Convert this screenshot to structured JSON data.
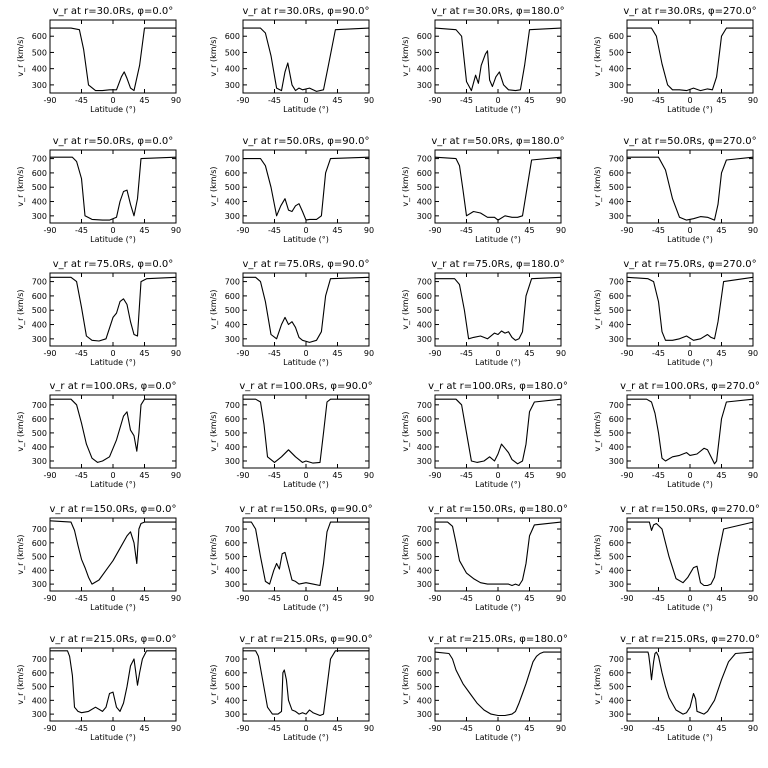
{
  "chart_data": {
    "type": "line",
    "xlabel": "Latitude (°)",
    "ylabel": "v_r (km/s)",
    "xlim": [
      -90,
      90
    ],
    "x_ticks": [
      -90,
      -45,
      0,
      45,
      90
    ],
    "rows": [
      {
        "r": "30.0",
        "ylim": [
          250,
          700
        ],
        "y_ticks": [
          300,
          400,
          500,
          600
        ]
      },
      {
        "r": "50.0",
        "ylim": [
          250,
          760
        ],
        "y_ticks": [
          300,
          400,
          500,
          600,
          700
        ]
      },
      {
        "r": "75.0",
        "ylim": [
          250,
          760
        ],
        "y_ticks": [
          300,
          400,
          500,
          600,
          700
        ]
      },
      {
        "r": "100.0",
        "ylim": [
          250,
          770
        ],
        "y_ticks": [
          300,
          400,
          500,
          600,
          700
        ]
      },
      {
        "r": "150.0",
        "ylim": [
          250,
          780
        ],
        "y_ticks": [
          300,
          400,
          500,
          600,
          700
        ]
      },
      {
        "r": "215.0",
        "ylim": [
          250,
          780
        ],
        "y_ticks": [
          300,
          400,
          500,
          600,
          700
        ]
      }
    ],
    "phis": [
      "0.0",
      "90.0",
      "180.0",
      "270.0"
    ],
    "panels": [
      {
        "title": "v_r at r=30.0Rs, φ=0.0°",
        "x": [
          -90,
          -60,
          -48,
          -42,
          -35,
          -25,
          -15,
          -5,
          5,
          12,
          16,
          20,
          25,
          30,
          38,
          45,
          90
        ],
        "y": [
          650,
          650,
          640,
          520,
          300,
          265,
          265,
          270,
          270,
          350,
          380,
          340,
          280,
          265,
          420,
          650,
          650
        ]
      },
      {
        "title": "v_r at r=30.0Rs, φ=90.0°",
        "x": [
          -90,
          -65,
          -58,
          -50,
          -42,
          -35,
          -30,
          -26,
          -20,
          -15,
          -10,
          -5,
          5,
          15,
          25,
          32,
          42,
          90
        ],
        "y": [
          650,
          650,
          620,
          480,
          280,
          265,
          380,
          435,
          300,
          265,
          280,
          270,
          280,
          260,
          270,
          420,
          640,
          650
        ]
      },
      {
        "title": "v_r at r=30.0Rs, φ=180.0°",
        "x": [
          -90,
          -60,
          -52,
          -45,
          -38,
          -32,
          -28,
          -24,
          -18,
          -15,
          -12,
          -8,
          -3,
          2,
          8,
          15,
          25,
          32,
          38,
          45,
          90
        ],
        "y": [
          650,
          640,
          600,
          320,
          265,
          360,
          310,
          420,
          490,
          510,
          330,
          290,
          350,
          380,
          300,
          270,
          265,
          270,
          420,
          640,
          650
        ]
      },
      {
        "title": "v_r at r=30.0Rs, φ=270.0°",
        "x": [
          -90,
          -55,
          -48,
          -40,
          -32,
          -25,
          -15,
          -5,
          5,
          15,
          25,
          32,
          38,
          45,
          52,
          90
        ],
        "y": [
          650,
          650,
          600,
          430,
          300,
          270,
          270,
          265,
          280,
          265,
          275,
          270,
          350,
          600,
          650,
          650
        ]
      },
      {
        "title": "v_r at r=50.0Rs, φ=0.0°",
        "x": [
          -90,
          -58,
          -52,
          -45,
          -40,
          -30,
          -15,
          -5,
          5,
          10,
          15,
          20,
          25,
          30,
          35,
          40,
          90
        ],
        "y": [
          710,
          710,
          680,
          560,
          300,
          275,
          270,
          270,
          290,
          400,
          470,
          480,
          380,
          300,
          420,
          700,
          710
        ]
      },
      {
        "title": "v_r at r=50.0Rs, φ=90.0°",
        "x": [
          -90,
          -65,
          -58,
          -50,
          -42,
          -36,
          -30,
          -25,
          -20,
          -15,
          -10,
          -5,
          0,
          5,
          15,
          22,
          28,
          35,
          90
        ],
        "y": [
          700,
          700,
          650,
          500,
          300,
          370,
          420,
          340,
          330,
          370,
          385,
          330,
          270,
          275,
          275,
          300,
          600,
          700,
          710
        ]
      },
      {
        "title": "v_r at r=50.0Rs, φ=180.0°",
        "x": [
          -90,
          -60,
          -55,
          -50,
          -45,
          -35,
          -25,
          -15,
          -5,
          0,
          10,
          20,
          28,
          35,
          40,
          48,
          90
        ],
        "y": [
          710,
          700,
          650,
          480,
          300,
          330,
          320,
          290,
          290,
          270,
          300,
          290,
          290,
          300,
          450,
          690,
          710
        ]
      },
      {
        "title": "v_r at r=50.0Rs, φ=270.0°",
        "x": [
          -90,
          -45,
          -35,
          -25,
          -15,
          -5,
          5,
          15,
          25,
          35,
          40,
          45,
          52,
          90
        ],
        "y": [
          710,
          710,
          620,
          420,
          290,
          270,
          280,
          295,
          290,
          270,
          380,
          600,
          690,
          710
        ]
      },
      {
        "title": "v_r at r=75.0Rs, φ=0.0°",
        "x": [
          -90,
          -60,
          -52,
          -45,
          -38,
          -30,
          -20,
          -10,
          0,
          5,
          10,
          15,
          20,
          25,
          30,
          35,
          40,
          48,
          90
        ],
        "y": [
          730,
          730,
          700,
          520,
          320,
          290,
          285,
          300,
          450,
          480,
          560,
          580,
          540,
          420,
          330,
          320,
          700,
          720,
          730
        ]
      },
      {
        "title": "v_r at r=75.0Rs, φ=90.0°",
        "x": [
          -90,
          -72,
          -65,
          -58,
          -50,
          -42,
          -35,
          -30,
          -25,
          -20,
          -15,
          -10,
          -5,
          5,
          15,
          22,
          28,
          35,
          90
        ],
        "y": [
          730,
          730,
          700,
          560,
          330,
          300,
          400,
          450,
          400,
          420,
          380,
          310,
          290,
          275,
          290,
          350,
          600,
          720,
          730
        ]
      },
      {
        "title": "v_r at r=75.0Rs, φ=180.0°",
        "x": [
          -90,
          -62,
          -55,
          -48,
          -42,
          -35,
          -25,
          -15,
          -5,
          0,
          5,
          10,
          15,
          20,
          25,
          30,
          35,
          40,
          48,
          90
        ],
        "y": [
          720,
          720,
          680,
          500,
          300,
          310,
          320,
          300,
          340,
          330,
          355,
          340,
          350,
          310,
          290,
          300,
          350,
          600,
          720,
          730
        ]
      },
      {
        "title": "v_r at r=75.0Rs, φ=270.0°",
        "x": [
          -90,
          -60,
          -52,
          -45,
          -40,
          -35,
          -25,
          -15,
          -5,
          5,
          15,
          25,
          30,
          35,
          40,
          48,
          90
        ],
        "y": [
          730,
          720,
          700,
          560,
          350,
          290,
          290,
          300,
          320,
          290,
          300,
          330,
          310,
          300,
          420,
          700,
          730
        ]
      },
      {
        "title": "v_r at r=100.0Rs, φ=0.0°",
        "x": [
          -90,
          -60,
          -52,
          -45,
          -38,
          -30,
          -22,
          -15,
          -5,
          5,
          15,
          20,
          25,
          30,
          34,
          37,
          40,
          45,
          90
        ],
        "y": [
          740,
          740,
          700,
          570,
          420,
          320,
          290,
          300,
          330,
          450,
          620,
          650,
          520,
          480,
          370,
          500,
          700,
          740,
          740
        ]
      },
      {
        "title": "v_r at r=100.0Rs, φ=90.0°",
        "x": [
          -90,
          -72,
          -65,
          -60,
          -55,
          -45,
          -35,
          -25,
          -15,
          -5,
          0,
          10,
          20,
          25,
          30,
          35,
          90
        ],
        "y": [
          740,
          740,
          720,
          560,
          330,
          290,
          330,
          380,
          330,
          290,
          300,
          285,
          290,
          500,
          720,
          740,
          740
        ]
      },
      {
        "title": "v_r at r=100.0Rs, φ=180.0°",
        "x": [
          -90,
          -60,
          -52,
          -45,
          -38,
          -30,
          -20,
          -12,
          -5,
          0,
          5,
          10,
          15,
          20,
          28,
          35,
          40,
          45,
          52,
          90
        ],
        "y": [
          740,
          740,
          700,
          500,
          300,
          290,
          300,
          330,
          300,
          350,
          420,
          390,
          360,
          310,
          280,
          300,
          420,
          650,
          720,
          740
        ]
      },
      {
        "title": "v_r at r=100.0Rs, φ=270.0°",
        "x": [
          -90,
          -62,
          -55,
          -50,
          -45,
          -40,
          -35,
          -25,
          -15,
          -5,
          0,
          10,
          20,
          25,
          30,
          35,
          38,
          45,
          52,
          90
        ],
        "y": [
          740,
          740,
          720,
          640,
          500,
          320,
          300,
          330,
          340,
          360,
          340,
          350,
          390,
          380,
          330,
          280,
          300,
          600,
          720,
          740
        ]
      },
      {
        "title": "v_r at r=150.0Rs, φ=0.0°",
        "x": [
          -90,
          -60,
          -55,
          -50,
          -45,
          -40,
          -35,
          -30,
          -20,
          -10,
          0,
          10,
          20,
          25,
          30,
          34,
          37,
          40,
          45,
          90
        ],
        "y": [
          760,
          750,
          690,
          580,
          480,
          420,
          350,
          300,
          330,
          400,
          470,
          560,
          650,
          680,
          600,
          450,
          700,
          740,
          750,
          750
        ]
      },
      {
        "title": "v_r at r=150.0Rs, φ=90.0°",
        "x": [
          -90,
          -78,
          -72,
          -65,
          -58,
          -52,
          -46,
          -42,
          -38,
          -34,
          -30,
          -26,
          -20,
          -15,
          -10,
          0,
          10,
          20,
          25,
          30,
          35,
          90
        ],
        "y": [
          750,
          750,
          700,
          500,
          320,
          300,
          400,
          450,
          410,
          520,
          530,
          450,
          330,
          320,
          300,
          310,
          300,
          290,
          450,
          680,
          750,
          750
        ]
      },
      {
        "title": "v_r at r=150.0Rs, φ=180.0°",
        "x": [
          -90,
          -72,
          -65,
          -60,
          -55,
          -45,
          -35,
          -25,
          -15,
          -5,
          5,
          15,
          20,
          25,
          30,
          35,
          40,
          45,
          52,
          90
        ],
        "y": [
          750,
          750,
          720,
          600,
          470,
          380,
          340,
          310,
          300,
          300,
          300,
          300,
          290,
          300,
          290,
          330,
          450,
          650,
          730,
          750
        ]
      },
      {
        "title": "v_r at r=150.0Rs, φ=270.0°",
        "x": [
          -90,
          -58,
          -55,
          -52,
          -48,
          -40,
          -30,
          -20,
          -10,
          -3,
          5,
          10,
          15,
          20,
          25,
          30,
          35,
          40,
          48,
          90
        ],
        "y": [
          750,
          750,
          690,
          730,
          740,
          700,
          500,
          340,
          310,
          350,
          420,
          430,
          310,
          290,
          290,
          300,
          350,
          500,
          700,
          750
        ]
      },
      {
        "title": "v_r at r=215.0Rs, φ=0.0°",
        "x": [
          -90,
          -65,
          -62,
          -58,
          -55,
          -50,
          -45,
          -35,
          -25,
          -15,
          -10,
          -5,
          0,
          5,
          10,
          15,
          20,
          25,
          30,
          35,
          38,
          42,
          48,
          90
        ],
        "y": [
          760,
          760,
          720,
          580,
          350,
          320,
          310,
          320,
          350,
          320,
          350,
          450,
          460,
          350,
          320,
          380,
          500,
          650,
          700,
          510,
          600,
          700,
          760,
          760
        ]
      },
      {
        "title": "v_r at r=215.0Rs, φ=90.0°",
        "x": [
          -90,
          -72,
          -68,
          -62,
          -55,
          -48,
          -40,
          -35,
          -33,
          -31,
          -28,
          -25,
          -20,
          -15,
          -10,
          -5,
          0,
          5,
          10,
          15,
          20,
          25,
          30,
          35,
          42,
          90
        ],
        "y": [
          760,
          760,
          720,
          550,
          350,
          300,
          300,
          320,
          600,
          620,
          550,
          400,
          330,
          320,
          300,
          310,
          300,
          330,
          310,
          300,
          290,
          300,
          500,
          700,
          760,
          760
        ]
      },
      {
        "title": "v_r at r=215.0Rs, φ=180.0°",
        "x": [
          -90,
          -70,
          -65,
          -60,
          -50,
          -40,
          -30,
          -20,
          -10,
          0,
          10,
          20,
          25,
          30,
          35,
          40,
          45,
          50,
          55,
          60,
          65,
          90
        ],
        "y": [
          750,
          740,
          700,
          620,
          520,
          450,
          380,
          330,
          300,
          290,
          290,
          300,
          320,
          380,
          450,
          520,
          600,
          680,
          720,
          740,
          750,
          750
        ]
      },
      {
        "title": "v_r at r=215.0Rs, φ=270.0°",
        "x": [
          -90,
          -60,
          -59,
          -57,
          -55,
          -52,
          -50,
          -48,
          -45,
          -40,
          -35,
          -30,
          -20,
          -10,
          -5,
          0,
          5,
          8,
          10,
          15,
          20,
          25,
          35,
          45,
          55,
          65,
          90
        ],
        "y": [
          750,
          750,
          730,
          650,
          550,
          680,
          740,
          750,
          720,
          600,
          500,
          420,
          330,
          300,
          310,
          350,
          450,
          410,
          320,
          310,
          300,
          320,
          400,
          550,
          680,
          740,
          750
        ]
      }
    ]
  }
}
